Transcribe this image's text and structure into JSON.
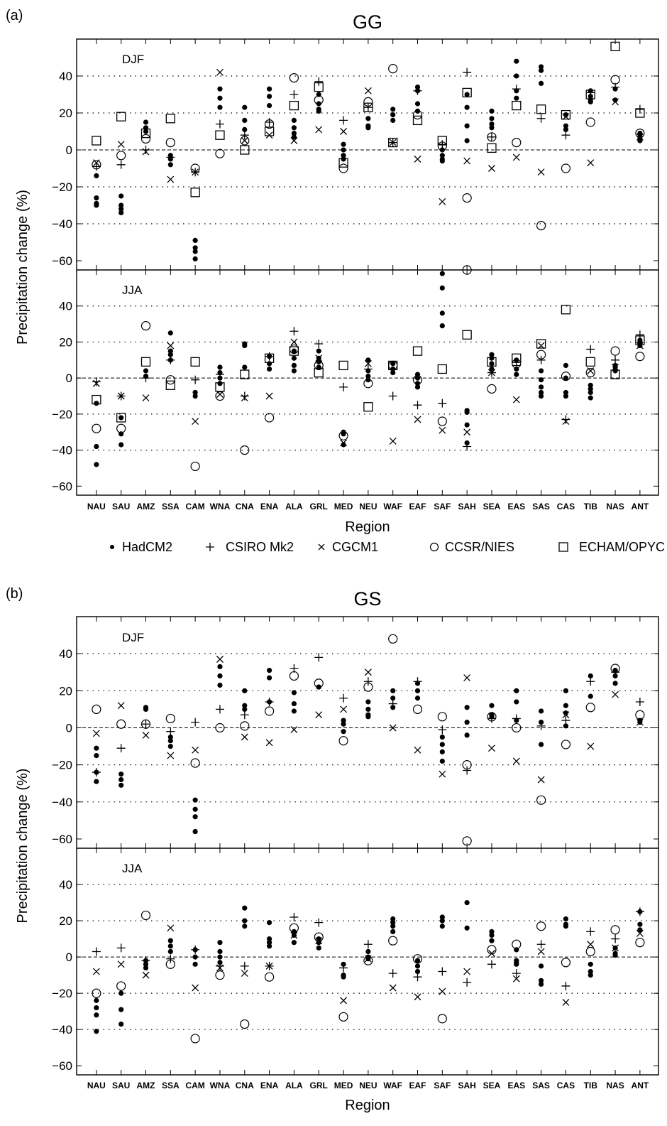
{
  "chart_data": {
    "type": "scatter",
    "categories": [
      "NAU",
      "SAU",
      "AMZ",
      "SSA",
      "CAM",
      "WNA",
      "CNA",
      "ENA",
      "ALA",
      "GRL",
      "MED",
      "NEU",
      "WAF",
      "EAF",
      "SAF",
      "SAH",
      "SEA",
      "EAS",
      "SAS",
      "CAS",
      "TIB",
      "NAS",
      "ANT"
    ],
    "xlabel": "Region",
    "ylabel": "Precipitation change (%)",
    "ylim": [
      -65,
      60
    ],
    "yticks": [
      -60,
      -40,
      -20,
      0,
      20,
      40
    ],
    "grid": "dotted horizontal at ±20, ±40",
    "legend": [
      {
        "key": "HadCM2",
        "label": "HadCM2",
        "marker": "•"
      },
      {
        "key": "CSIRO",
        "label": "CSIRO Mk2",
        "marker": "+"
      },
      {
        "key": "CGCM1",
        "label": "CGCM1",
        "marker": "×"
      },
      {
        "key": "CCSR",
        "label": "CCSR/NIES",
        "marker": "○"
      },
      {
        "key": "ECHAM",
        "label": "ECHAM/OPYC",
        "marker": "□"
      }
    ],
    "panels": [
      {
        "label": "(a)",
        "title": "GG",
        "subplots": [
          {
            "season": "DJF",
            "series": {
              "HadCM2": [
                [
                  -14,
                  -26,
                  -29,
                  -30
                ],
                [
                  -25,
                  -30,
                  -32,
                  -34
                ],
                [
                  15,
                  12,
                  10
                ],
                [
                  -3,
                  -5,
                  -8
                ],
                [
                  -49,
                  -53,
                  -55,
                  -59
                ],
                [
                  33,
                  28,
                  23
                ],
                [
                  23,
                  16,
                  11
                ],
                [
                  33,
                  29,
                  24
                ],
                [
                  16,
                  12,
                  9,
                  7
                ],
                [
                  30,
                  25,
                  22,
                  21
                ],
                [
                  3,
                  0,
                  -3,
                  -5
                ],
                [
                  17,
                  13,
                  12
                ],
                [
                  22,
                  19,
                  16
                ],
                [
                  34,
                  32,
                  25,
                  21
                ],
                [
                  0,
                  -3,
                  -5,
                  -6
                ],
                [
                  30,
                  23,
                  13,
                  5
                ],
                [
                  21,
                  17,
                  14,
                  12
                ],
                [
                  48,
                  40,
                  32,
                  28
                ],
                [
                  45,
                  43,
                  36
                ],
                [
                  19,
                  13,
                  11
                ],
                [
                  32,
                  29,
                  27,
                  26
                ],
                [
                  33,
                  27
                ],
                [
                  9,
                  7,
                  6,
                  5
                ]
              ],
              "CSIRO": [
                -9,
                -8,
                0,
                -4,
                -12,
                14,
                8,
                15,
                30,
                37,
                16,
                23,
                4,
                32,
                3,
                42,
                7,
                33,
                17,
                8,
                31,
                34,
                22
              ],
              "CGCM1": [
                -7,
                3,
                -1,
                -16,
                -12,
                42,
                5,
                8,
                5,
                11,
                10,
                32,
                4,
                -5,
                -28,
                -6,
                -10,
                -4,
                -12,
                18,
                -7,
                26,
                7
              ],
              "CCSR": [
                -8,
                -3,
                6,
                4,
                -10,
                -2,
                5,
                14,
                39,
                27,
                -10,
                26,
                44,
                19,
                2,
                -26,
                7,
                4,
                -41,
                -10,
                15,
                38,
                9
              ],
              "ECHAM": [
                5,
                18,
                9,
                17,
                -23,
                8,
                0,
                10,
                24,
                34,
                -7,
                23,
                4,
                16,
                5,
                31,
                1,
                24,
                22,
                19,
                30,
                56,
                20
              ]
            }
          },
          {
            "season": "JJA",
            "series": {
              "HadCM2": [
                [
                  -14,
                  -38,
                  -48
                ],
                [
                  -22,
                  -31,
                  -37
                ],
                [
                  4,
                  1
                ],
                [
                  25,
                  15,
                  13,
                  10
                ],
                [
                  -8,
                  -10
                ],
                [
                  6,
                  3,
                  0,
                  -3
                ],
                [
                  19,
                  18,
                  6
                ],
                [
                  12,
                  8,
                  5
                ],
                [
                  15,
                  11,
                  7,
                  4
                ],
                [
                  15,
                  11,
                  9,
                  6
                ],
                [
                  -30,
                  -31,
                  -37
                ],
                [
                  10,
                  4,
                  1,
                  -1
                ],
                [
                  8,
                  5,
                  3
                ],
                [
                  2,
                  0,
                  -3,
                  -5
                ],
                [
                  58,
                  50,
                  36,
                  29
                ],
                [
                  -18,
                  -19,
                  -26,
                  -36
                ],
                [
                  13,
                  11,
                  8,
                  5
                ],
                [
                  10,
                  5,
                  2
                ],
                [
                  4,
                  -1,
                  -5,
                  -8,
                  -10
                ],
                [
                  7,
                  0,
                  -8,
                  -10
                ],
                [
                  -4,
                  -6,
                  -8,
                  -11
                ],
                [
                  7,
                  6,
                  4
                ],
                [
                  21,
                  20,
                  18
                ]
              ],
              "CSIRO": [
                -2,
                -10,
                0,
                10,
                -1,
                2,
                -10,
                12,
                26,
                19,
                -5,
                5,
                -10,
                -15,
                -14,
                -38,
                3,
                7,
                10,
                -23,
                16,
                10,
                24
              ],
              "CGCM1": [
                -3,
                -10,
                -11,
                18,
                -24,
                -9,
                -11,
                -10,
                20,
                11,
                -36,
                8,
                -35,
                -23,
                -29,
                -30,
                3,
                -12,
                18,
                -24,
                4,
                6,
                18
              ],
              "CCSR": [
                -28,
                -28,
                29,
                -1,
                -49,
                -10,
                -40,
                -22,
                16,
                7,
                -32,
                -3,
                7,
                -1,
                -24,
                60,
                -6,
                8,
                13,
                1,
                3,
                15,
                12
              ],
              "ECHAM": [
                -12,
                -22,
                9,
                -4,
                9,
                -5,
                2,
                11,
                15,
                3,
                7,
                -16,
                7,
                15,
                5,
                24,
                9,
                11,
                19,
                38,
                9,
                2,
                21
              ]
            }
          }
        ]
      },
      {
        "label": "(b)",
        "title": "GS",
        "subplots": [
          {
            "season": "DJF",
            "series": {
              "HadCM2": [
                [
                  -11,
                  -15,
                  -24,
                  -29
                ],
                [
                  -25,
                  -28,
                  -31
                ],
                [
                  11,
                  10
                ],
                [
                  -5,
                  -7,
                  -10
                ],
                [
                  -39,
                  -44,
                  -48,
                  -56
                ],
                [
                  33,
                  28,
                  23
                ],
                [
                  20,
                  12,
                  10
                ],
                [
                  31,
                  27,
                  14
                ],
                [
                  19,
                  13,
                  9
                ],
                [
                  22,
                  22
                ],
                [
                  4,
                  2,
                  -2
                ],
                [
                  14,
                  10,
                  7,
                  6
                ],
                [
                  20,
                  16,
                  11
                ],
                [
                  24,
                  20,
                  16
                ],
                [
                  -5,
                  -9,
                  -13,
                  -18
                ],
                [
                  11,
                  3,
                  -4
                ],
                [
                  12,
                  7,
                  6
                ],
                [
                  20,
                  14,
                  4
                ],
                [
                  9,
                  3,
                  -9
                ],
                [
                  20,
                  12,
                  8,
                  1
                ],
                [
                  28,
                  17
                ],
                [
                  31,
                  28,
                  24
                ],
                [
                  4,
                  3
                ]
              ],
              "CSIRO": [
                -24,
                -11,
                2,
                -2,
                3,
                10,
                7,
                14,
                32,
                38,
                16,
                25,
                13,
                25,
                -1,
                -23,
                5,
                5,
                1,
                4,
                25,
                30,
                14
              ],
              "CGCM1": [
                -3,
                12,
                -4,
                -15,
                -12,
                37,
                -5,
                -8,
                -1,
                7,
                10,
                30,
                0,
                -12,
                -25,
                27,
                -11,
                -18,
                -28,
                7,
                -10,
                18,
                3
              ],
              "CCSR": [
                10,
                2,
                2,
                5,
                -19,
                0,
                1,
                9,
                28,
                24,
                -7,
                22,
                48,
                10,
                6,
                -20,
                6,
                0,
                -39,
                -9,
                11,
                32,
                7
              ],
              "ECHAM": []
            }
          },
          {
            "season": "JJA",
            "series": {
              "HadCM2": [
                [
                  -24,
                  -28,
                  -32,
                  -41
                ],
                [
                  -20,
                  -29,
                  -37
                ],
                [
                  -2,
                  -4,
                  -6
                ],
                [
                  9,
                  6,
                  3
                ],
                [
                  4,
                  0,
                  -4
                ],
                [
                  8,
                  3,
                  0,
                  -3
                ],
                [
                  27,
                  20,
                  17
                ],
                [
                  19,
                  10,
                  8,
                  6
                ],
                [
                  14,
                  12,
                  8
                ],
                [
                  10,
                  8,
                  5
                ],
                [
                  -4,
                  -10,
                  -11
                ],
                [
                  3,
                  0,
                  -1
                ],
                [
                  21,
                  19,
                  17,
                  14
                ],
                [
                  -2,
                  -5,
                  -8
                ],
                [
                  22,
                  20,
                  17
                ],
                [
                  30,
                  16
                ],
                [
                  14,
                  12,
                  9
                ],
                [
                  4,
                  -2,
                  -3,
                  -4
                ],
                [
                  -5,
                  -13,
                  -15
                ],
                [
                  21,
                  18,
                  17
                ],
                [
                  -4,
                  -8,
                  -10
                ],
                [
                  5,
                  2,
                  1
                ],
                [
                  25,
                  18,
                  15
                ]
              ],
              "CSIRO": [
                3,
                5,
                -2,
                -1,
                4,
                -5,
                -5,
                -5,
                22,
                19,
                -6,
                7,
                -9,
                -11,
                -8,
                -14,
                -4,
                -9,
                7,
                -16,
                14,
                10,
                25
              ],
              "CGCM1": [
                -8,
                -4,
                -10,
                16,
                -17,
                -6,
                -9,
                -5,
                12,
                9,
                -24,
                -1,
                -17,
                -22,
                -19,
                -8,
                2,
                -12,
                3,
                -25,
                7,
                5,
                13
              ],
              "CCSR": [
                -20,
                -16,
                23,
                -4,
                -45,
                -10,
                -37,
                -11,
                16,
                11,
                -33,
                -2,
                9,
                -1,
                -34,
                64,
                4,
                7,
                17,
                -3,
                3,
                15,
                8
              ],
              "ECHAM": []
            }
          }
        ]
      }
    ]
  }
}
